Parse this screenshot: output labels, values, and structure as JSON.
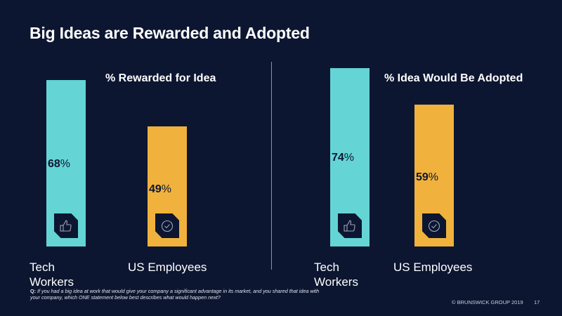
{
  "title": "Big Ideas are Rewarded and Adopted",
  "colors": {
    "background": "#0c1631",
    "tech": "#64d4d4",
    "us": "#f0b23c",
    "text": "#ffffff"
  },
  "chart_data": [
    {
      "type": "bar",
      "title": "% Rewarded for Idea",
      "categories": [
        "Tech Workers",
        "US Employees"
      ],
      "values": [
        68,
        49
      ],
      "value_labels": [
        "68%",
        "49%"
      ],
      "icons": [
        "thumbs-up-icon",
        "check-circle-icon"
      ],
      "ylim": [
        0,
        100
      ],
      "xlabel": "",
      "ylabel": ""
    },
    {
      "type": "bar",
      "title": "% Idea Would Be Adopted",
      "categories": [
        "Tech Workers",
        "US Employees"
      ],
      "values": [
        74,
        59
      ],
      "value_labels": [
        "74%",
        "59%"
      ],
      "icons": [
        "thumbs-up-icon",
        "check-circle-icon"
      ],
      "ylim": [
        0,
        100
      ],
      "xlabel": "",
      "ylabel": ""
    }
  ],
  "labels": {
    "tech_line1": "Tech",
    "tech_line2": "Workers",
    "us": "US Employees"
  },
  "footnote": {
    "prefix": "Q:",
    "text": "If you had a big idea at work that would give your company a significant advantage in its market, and you shared that idea with your company, which ONE statement below best describes what would happen next?"
  },
  "footer": {
    "copyright": "© BRUNSWICK GROUP 2019",
    "page": "17"
  }
}
